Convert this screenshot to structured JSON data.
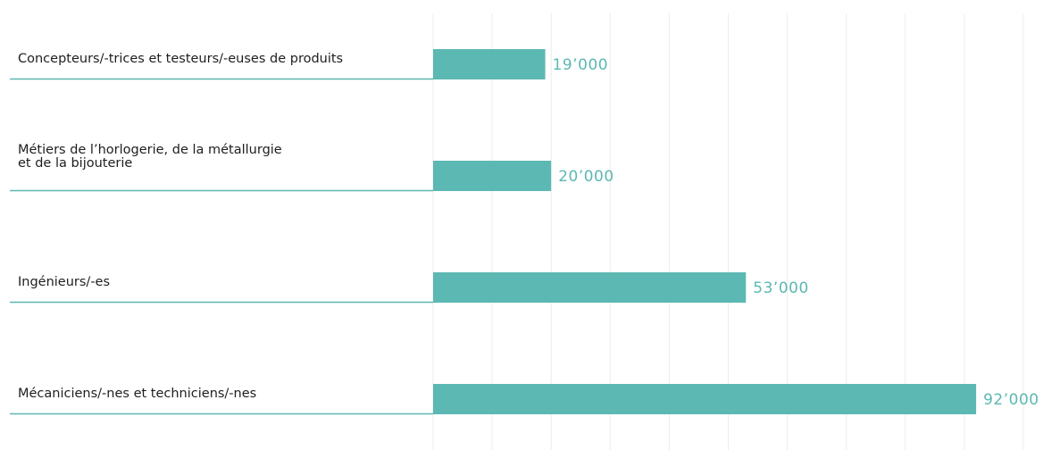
{
  "chart_data": {
    "type": "bar",
    "orientation": "horizontal",
    "categories": [
      "Concepteurs/-trices et testeurs/-euses de produits",
      "Métiers de l’horlogerie, de la métallurgie et de la bijouterie",
      "Ingénieurs/-es",
      "Mécaniciens/-nes et techniciens/-nes"
    ],
    "category_lines": [
      [
        "Concepteurs/-trices et testeurs/-euses de produits"
      ],
      [
        "Métiers de l’horlogerie, de la métallurgie",
        "et de la bijouterie"
      ],
      [
        "Ingénieurs/-es"
      ],
      [
        "Mécaniciens/-nes et techniciens/-nes"
      ]
    ],
    "values": [
      19000,
      20000,
      53000,
      92000
    ],
    "value_labels": [
      "19’000",
      "20’000",
      "53’000",
      "92’000"
    ],
    "xlim": [
      0,
      100000
    ],
    "grid": true,
    "colors": {
      "bar": "#5cb8b2",
      "value_text": "#5cb8b2",
      "underline": "#5cb8b2",
      "grid": "#ececec",
      "label_text": "#1e1e1e"
    }
  }
}
